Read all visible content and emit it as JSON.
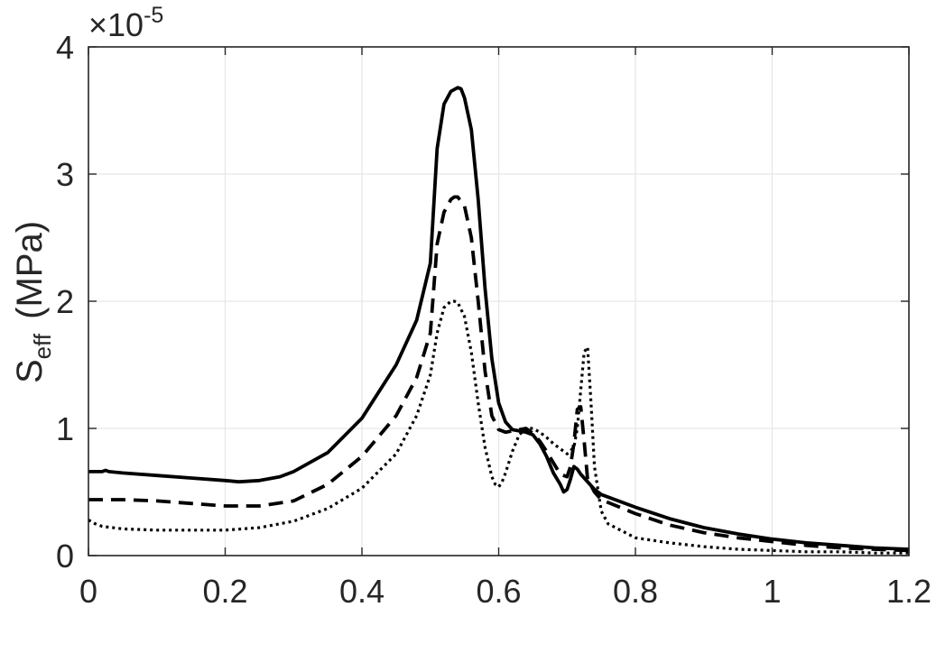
{
  "chart_data": {
    "type": "line",
    "title": "",
    "xlabel": "",
    "ylabel_main": "S",
    "ylabel_sub": "eff",
    "ylabel_unit": "(MPa)",
    "exponent_prefix": "×10",
    "exponent_power": "-5",
    "xlim": [
      0,
      1.2
    ],
    "ylim": [
      0,
      4
    ],
    "x_ticks": [
      "0",
      "0.2",
      "0.4",
      "0.6",
      "0.8",
      "1",
      "1.2"
    ],
    "y_ticks": [
      "0",
      "1",
      "2",
      "3",
      "4"
    ],
    "grid": true,
    "colors": {
      "axis": "#262626",
      "grid": "#e6e6e6",
      "line": "#000000"
    },
    "series": [
      {
        "style": "solid",
        "x": [
          0,
          0.02,
          0.025,
          0.03,
          0.05,
          0.1,
          0.15,
          0.2,
          0.22,
          0.25,
          0.28,
          0.3,
          0.35,
          0.4,
          0.45,
          0.48,
          0.5,
          0.51,
          0.52,
          0.53,
          0.54,
          0.545,
          0.55,
          0.56,
          0.57,
          0.58,
          0.59,
          0.6,
          0.61,
          0.62,
          0.63,
          0.64,
          0.65,
          0.66,
          0.67,
          0.68,
          0.69,
          0.695,
          0.7,
          0.705,
          0.71,
          0.715,
          0.72,
          0.73,
          0.74,
          0.75,
          0.8,
          0.85,
          0.9,
          0.95,
          1.0,
          1.05,
          1.1,
          1.15,
          1.2
        ],
        "y": [
          0.66,
          0.66,
          0.67,
          0.66,
          0.65,
          0.63,
          0.61,
          0.59,
          0.58,
          0.59,
          0.62,
          0.66,
          0.81,
          1.08,
          1.5,
          1.85,
          2.3,
          3.2,
          3.55,
          3.65,
          3.68,
          3.67,
          3.6,
          3.35,
          2.8,
          2.1,
          1.55,
          1.2,
          1.05,
          0.99,
          0.98,
          0.97,
          0.95,
          0.88,
          0.78,
          0.65,
          0.56,
          0.5,
          0.52,
          0.6,
          0.7,
          0.68,
          0.64,
          0.58,
          0.52,
          0.48,
          0.38,
          0.29,
          0.22,
          0.17,
          0.13,
          0.1,
          0.08,
          0.06,
          0.05
        ]
      },
      {
        "style": "dashed",
        "x": [
          0,
          0.05,
          0.1,
          0.15,
          0.2,
          0.25,
          0.3,
          0.35,
          0.4,
          0.45,
          0.48,
          0.5,
          0.51,
          0.52,
          0.53,
          0.535,
          0.54,
          0.55,
          0.56,
          0.57,
          0.58,
          0.59,
          0.6,
          0.61,
          0.62,
          0.63,
          0.64,
          0.65,
          0.66,
          0.67,
          0.68,
          0.69,
          0.7,
          0.705,
          0.71,
          0.715,
          0.72,
          0.725,
          0.73,
          0.74,
          0.75,
          0.8,
          0.85,
          0.9,
          0.95,
          1.0,
          1.05,
          1.1,
          1.15,
          1.2
        ],
        "y": [
          0.44,
          0.44,
          0.43,
          0.41,
          0.39,
          0.39,
          0.43,
          0.56,
          0.78,
          1.1,
          1.4,
          1.75,
          2.45,
          2.7,
          2.8,
          2.82,
          2.82,
          2.75,
          2.5,
          2.0,
          1.45,
          1.1,
          0.99,
          0.97,
          0.98,
          0.99,
          1.0,
          0.96,
          0.9,
          0.82,
          0.73,
          0.64,
          0.62,
          0.7,
          0.88,
          1.15,
          1.17,
          0.9,
          0.6,
          0.5,
          0.44,
          0.33,
          0.24,
          0.18,
          0.14,
          0.11,
          0.08,
          0.06,
          0.05,
          0.04
        ]
      },
      {
        "style": "dotted",
        "x": [
          0,
          0.01,
          0.02,
          0.05,
          0.1,
          0.15,
          0.2,
          0.25,
          0.3,
          0.35,
          0.4,
          0.45,
          0.48,
          0.5,
          0.51,
          0.52,
          0.53,
          0.535,
          0.54,
          0.55,
          0.56,
          0.57,
          0.58,
          0.59,
          0.595,
          0.6,
          0.605,
          0.61,
          0.62,
          0.63,
          0.64,
          0.65,
          0.66,
          0.67,
          0.68,
          0.69,
          0.7,
          0.71,
          0.715,
          0.72,
          0.725,
          0.73,
          0.735,
          0.74,
          0.75,
          0.76,
          0.8,
          0.85,
          0.9,
          0.95,
          1.0,
          1.05,
          1.1,
          1.15,
          1.2
        ],
        "y": [
          0.28,
          0.25,
          0.23,
          0.21,
          0.2,
          0.2,
          0.2,
          0.22,
          0.27,
          0.37,
          0.53,
          0.8,
          1.1,
          1.42,
          1.75,
          1.95,
          2.0,
          2.0,
          1.99,
          1.88,
          1.6,
          1.2,
          0.85,
          0.62,
          0.56,
          0.54,
          0.58,
          0.65,
          0.82,
          0.95,
          1.0,
          1.0,
          0.97,
          0.93,
          0.88,
          0.84,
          0.8,
          0.85,
          1.0,
          1.3,
          1.6,
          1.64,
          1.2,
          0.7,
          0.35,
          0.25,
          0.14,
          0.1,
          0.07,
          0.05,
          0.04,
          0.03,
          0.03,
          0.02,
          0.02
        ]
      }
    ]
  }
}
